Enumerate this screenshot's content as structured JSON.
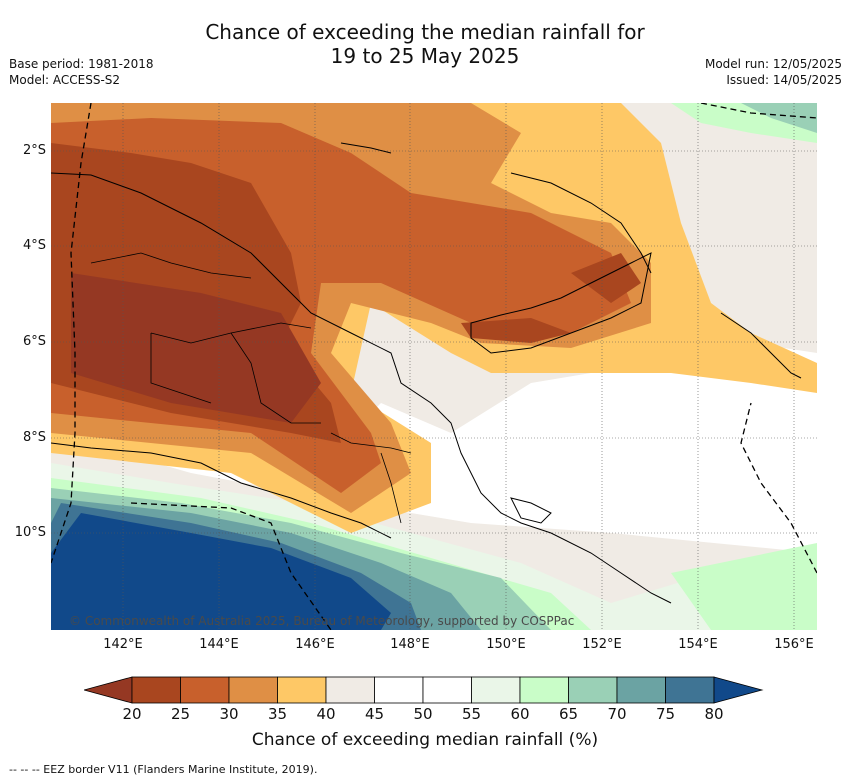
{
  "header": {
    "title_line1": "Chance of exceeding the median rainfall for",
    "title_line2": "19 to 25 May 2025",
    "base_period": "Base period: 1981-2018",
    "model": "Model: ACCESS-S2",
    "model_run": "Model run: 12/05/2025",
    "issued": "Issued: 14/05/2025"
  },
  "map": {
    "lat_labels": [
      "2°S",
      "4°S",
      "6°S",
      "8°S",
      "10°S"
    ],
    "lon_labels": [
      "142°E",
      "144°E",
      "146°E",
      "148°E",
      "150°E",
      "152°E",
      "154°E",
      "156°E"
    ],
    "copyright": "© Commonwealth of Australia 2025, Bureau of Meteorology, supported by COSPPac"
  },
  "colorbar": {
    "ticks": [
      "20",
      "25",
      "30",
      "35",
      "40",
      "45",
      "50",
      "55",
      "60",
      "65",
      "70",
      "75",
      "80"
    ],
    "colors": [
      "#a9461f",
      "#c8602c",
      "#df8f45",
      "#fec866",
      "#f0ebe5",
      "#ffffff",
      "#ffffff",
      "#eaf6e8",
      "#c9fdc8",
      "#9ad0b6",
      "#6ba3a3",
      "#3f7494"
    ],
    "under_color": "#953823",
    "over_color": "#11498a",
    "label": "Chance of exceeding median rainfall (%)"
  },
  "legend": {
    "eez_text": "-- -- -- EEZ border V11 (Flanders Marine Institute, 2019)."
  }
}
